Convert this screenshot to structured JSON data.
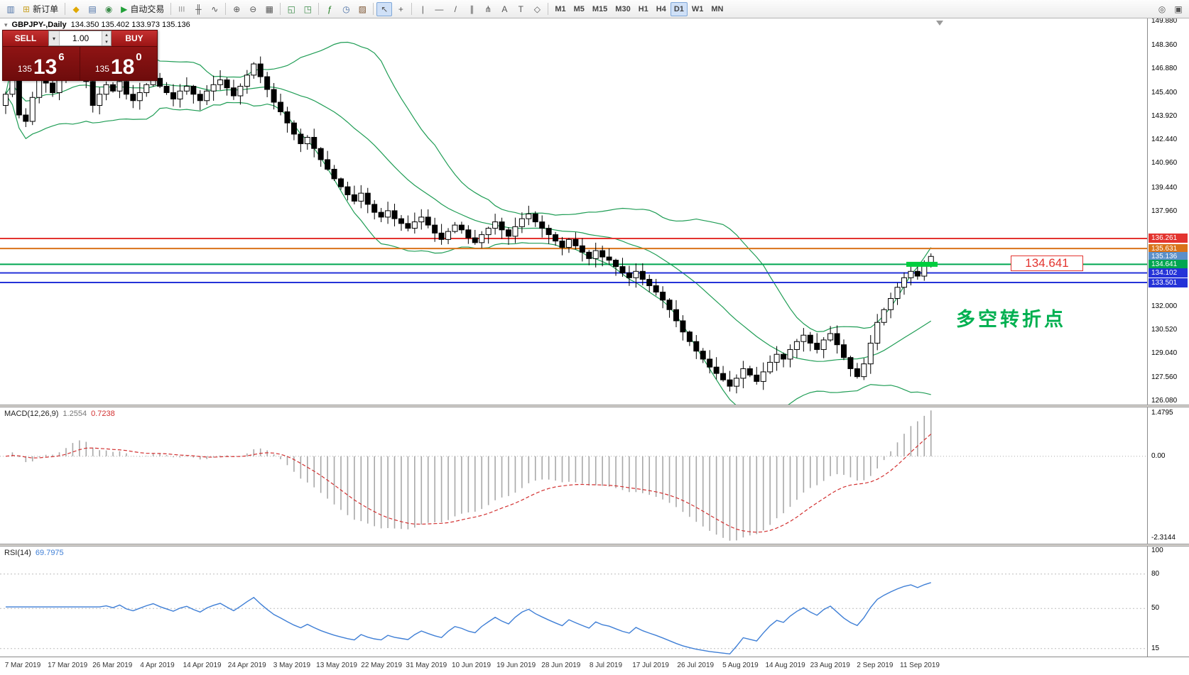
{
  "header": {
    "symbol_period": "GBPJPY-,Daily",
    "ohlc": "134.350 135.402 133.973 135.136",
    "icon": "▾"
  },
  "toolbar": {
    "items": [
      {
        "type": "btn",
        "name": "chart-window-button",
        "glyph": "▥",
        "color": "#4a6fa5"
      },
      {
        "type": "btn",
        "name": "new-order-button",
        "glyph": "⊞",
        "color": "#c9a227",
        "label": "新订单"
      },
      {
        "type": "sep"
      },
      {
        "type": "btn",
        "name": "market-watch-button",
        "glyph": "◆",
        "color": "#e0a800"
      },
      {
        "type": "btn",
        "name": "data-window-button",
        "glyph": "▤",
        "color": "#4a6fa5"
      },
      {
        "type": "btn",
        "name": "navigator-button",
        "glyph": "◉",
        "color": "#3c8c4a"
      },
      {
        "type": "btn",
        "name": "auto-trading-button",
        "glyph": "▶",
        "color": "#21a038",
        "label": "自动交易"
      },
      {
        "type": "sep"
      },
      {
        "type": "btn",
        "name": "bar-chart-type-button",
        "glyph": "|||"
      },
      {
        "type": "btn",
        "name": "candlestick-type-button",
        "glyph": "╫"
      },
      {
        "type": "btn",
        "name": "line-chart-type-button",
        "glyph": "∿"
      },
      {
        "type": "sep"
      },
      {
        "type": "btn",
        "name": "zoom-in-button",
        "glyph": "⊕"
      },
      {
        "type": "btn",
        "name": "zoom-out-button",
        "glyph": "⊖"
      },
      {
        "type": "btn",
        "name": "tile-windows-button",
        "glyph": "▦"
      },
      {
        "type": "sep"
      },
      {
        "type": "btn",
        "name": "auto-scroll-button",
        "glyph": "◱",
        "color": "#3c8c4a"
      },
      {
        "type": "btn",
        "name": "chart-shift-button",
        "glyph": "◳",
        "color": "#3c8c4a"
      },
      {
        "type": "sep"
      },
      {
        "type": "btn",
        "name": "indicators-button",
        "glyph": "ƒ",
        "color": "#1a7a1a"
      },
      {
        "type": "btn",
        "name": "periods-dropdown-button",
        "glyph": "◷",
        "color": "#4a6fa5"
      },
      {
        "type": "btn",
        "name": "templates-button",
        "glyph": "▨",
        "color": "#7a5230"
      },
      {
        "type": "sep"
      },
      {
        "type": "btn",
        "name": "cursor-button",
        "glyph": "↖",
        "active": true
      },
      {
        "type": "btn",
        "name": "crosshair-button",
        "glyph": "+"
      },
      {
        "type": "sep"
      },
      {
        "type": "btn",
        "name": "vertical-line-button",
        "glyph": "|"
      },
      {
        "type": "btn",
        "name": "horizontal-line-button",
        "glyph": "—"
      },
      {
        "type": "btn",
        "name": "trendline-button",
        "glyph": "/"
      },
      {
        "type": "btn",
        "name": "channel-button",
        "glyph": "∥"
      },
      {
        "type": "btn",
        "name": "fibonacci-button",
        "glyph": "⋔"
      },
      {
        "type": "btn",
        "name": "text-button",
        "glyph": "A"
      },
      {
        "type": "btn",
        "name": "label-button",
        "glyph": "T"
      },
      {
        "type": "btn",
        "name": "shapes-button",
        "glyph": "◇"
      },
      {
        "type": "sep"
      },
      {
        "type": "tf",
        "name": "timeframe-m1-button",
        "label": "M1"
      },
      {
        "type": "tf",
        "name": "timeframe-m5-button",
        "label": "M5"
      },
      {
        "type": "tf",
        "name": "timeframe-m15-button",
        "label": "M15"
      },
      {
        "type": "tf",
        "name": "timeframe-m30-button",
        "label": "M30"
      },
      {
        "type": "tf",
        "name": "timeframe-h1-button",
        "label": "H1"
      },
      {
        "type": "tf",
        "name": "timeframe-h4-button",
        "label": "H4"
      },
      {
        "type": "tf",
        "name": "timeframe-d1-button",
        "label": "D1",
        "active": true
      },
      {
        "type": "tf",
        "name": "timeframe-w1-button",
        "label": "W1"
      },
      {
        "type": "tf",
        "name": "timeframe-mn-button",
        "label": "MN"
      },
      {
        "type": "spacer"
      },
      {
        "type": "btn",
        "name": "search-button",
        "glyph": "◎"
      },
      {
        "type": "btn",
        "name": "new-chart-window-button",
        "glyph": "▣"
      }
    ]
  },
  "trade_panel": {
    "sell_label": "SELL",
    "buy_label": "BUY",
    "volume": "1.00",
    "volume_dropdown_icon": "▾",
    "volume_up_icon": "▴",
    "volume_down_icon": "▾",
    "bid": {
      "prefix": "135",
      "big": "13",
      "sup": "6"
    },
    "ask": {
      "prefix": "135",
      "big": "18",
      "sup": "0"
    }
  },
  "chart_data": {
    "type": "candlestick",
    "symbol": "GBPJPY-",
    "timeframe": "Daily",
    "header_ohlc": {
      "open": "134.350",
      "high": "135.402",
      "low": "133.973",
      "close": "135.136"
    },
    "main": {
      "price_axis": {
        "min": 125.85,
        "max": 150.05,
        "ticks": [
          "149.880",
          "148.360",
          "146.880",
          "145.400",
          "143.920",
          "142.440",
          "140.960",
          "139.440",
          "137.960",
          "132.000",
          "130.520",
          "129.040",
          "127.560",
          "126.080"
        ]
      },
      "first_open": 144.6,
      "closes": [
        145.3,
        146.6,
        144.0,
        143.6,
        145.1,
        146.3,
        146.0,
        145.4,
        146.2,
        147.0,
        147.6,
        147.2,
        146.1,
        144.6,
        145.3,
        145.9,
        145.5,
        146.1,
        145.3,
        144.9,
        145.4,
        145.9,
        146.3,
        145.8,
        145.4,
        145.0,
        145.5,
        145.8,
        145.3,
        144.9,
        145.5,
        145.9,
        146.2,
        145.7,
        145.2,
        145.8,
        146.5,
        147.2,
        146.4,
        145.6,
        144.8,
        144.2,
        143.5,
        142.8,
        142.2,
        142.6,
        141.9,
        141.2,
        140.6,
        140.0,
        139.5,
        139.0,
        138.6,
        139.1,
        138.4,
        137.9,
        137.6,
        138.0,
        137.5,
        137.2,
        136.9,
        137.3,
        137.6,
        137.1,
        136.6,
        136.2,
        136.7,
        137.1,
        136.8,
        136.3,
        136.0,
        136.5,
        136.9,
        137.3,
        136.8,
        136.4,
        137.0,
        137.5,
        137.8,
        137.3,
        136.9,
        136.5,
        136.1,
        135.7,
        136.2,
        135.8,
        135.4,
        135.0,
        135.5,
        135.1,
        134.9,
        134.5,
        134.1,
        133.8,
        134.2,
        133.7,
        133.3,
        132.9,
        132.4,
        131.8,
        131.1,
        130.4,
        129.8,
        129.2,
        128.7,
        128.2,
        127.8,
        127.4,
        127.0,
        127.5,
        128.1,
        127.7,
        127.3,
        127.9,
        128.5,
        129.0,
        128.7,
        129.3,
        129.8,
        130.2,
        129.7,
        129.3,
        129.9,
        130.3,
        129.6,
        128.8,
        128.1,
        127.6,
        128.4,
        129.7,
        131.0,
        131.8,
        132.5,
        133.2,
        133.8,
        134.2,
        133.9,
        134.6,
        135.136
      ],
      "bollinger": {
        "period": 20,
        "deviation": 2,
        "color": "#1f9d55"
      },
      "hlines": [
        {
          "price": 136.261,
          "color": "#e3342f",
          "width": 2
        },
        {
          "price": 135.631,
          "color": "#d9731a",
          "width": 2
        },
        {
          "price": 134.641,
          "color": "#00a651",
          "width": 2,
          "thick_segment": true,
          "label": "134.641"
        },
        {
          "price": 134.102,
          "color": "#2533d8",
          "width": 2
        },
        {
          "price": 133.501,
          "color": "#2533d8",
          "width": 2
        }
      ],
      "tags": [
        {
          "text": "136.261",
          "color": "#e3342f"
        },
        {
          "text": "135.631",
          "color": "#d9731a"
        },
        {
          "text": "135.136",
          "color": "#5b8fc9"
        },
        {
          "text": "134.641",
          "color": "#00a651"
        },
        {
          "text": "134.102",
          "color": "#2533d8"
        },
        {
          "text": "133.501",
          "color": "#2533d8"
        }
      ],
      "current_price": "135.136",
      "annotation": {
        "text": "多空转折点",
        "color": "#00b050"
      }
    },
    "macd": {
      "label": "MACD(12,26,9)",
      "value_main": "1.2554",
      "value_signal": "0.7238",
      "axis": [
        "1.4795",
        "0.00",
        "-2.3144"
      ],
      "histogram_color": "#a8a8a8",
      "signal_color": "#d23030"
    },
    "rsi": {
      "label": "RSI(14)",
      "value": "69.7975",
      "axis": [
        "100",
        "80",
        "50",
        "15"
      ],
      "levels": [
        80,
        50,
        15
      ],
      "range": [
        8,
        104
      ],
      "line_color": "#3f7fd6"
    },
    "x_axis": {
      "labels": [
        "7 Mar 2019",
        "17 Mar 2019",
        "26 Mar 2019",
        "4 Apr 2019",
        "14 Apr 2019",
        "24 Apr 2019",
        "3 May 2019",
        "13 May 2019",
        "22 May 2019",
        "31 May 2019",
        "10 Jun 2019",
        "19 Jun 2019",
        "28 Jun 2019",
        "8 Jul 2019",
        "17 Jul 2019",
        "26 Jul 2019",
        "5 Aug 2019",
        "14 Aug 2019",
        "23 Aug 2019",
        "2 Sep 2019",
        "11 Sep 2019"
      ]
    }
  }
}
